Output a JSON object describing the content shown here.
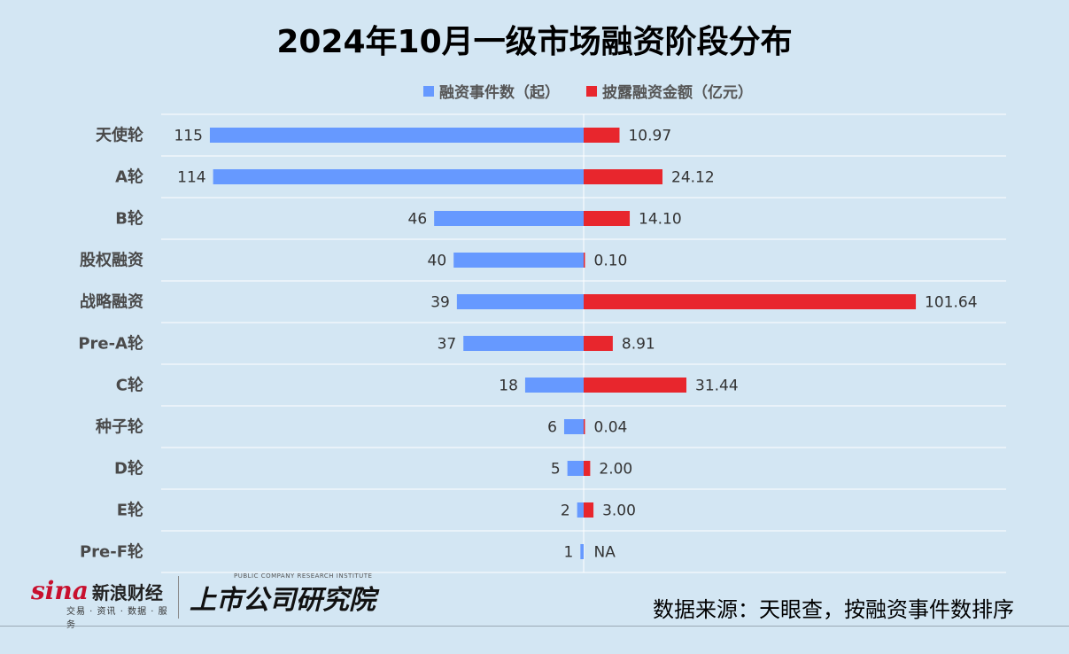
{
  "chart_data": {
    "type": "bar",
    "title": "2024年10月一级市场融资阶段分布",
    "categories": [
      "天使轮",
      "A轮",
      "B轮",
      "股权融资",
      "战略融资",
      "Pre-A轮",
      "C轮",
      "种子轮",
      "D轮",
      "E轮",
      "Pre-F轮"
    ],
    "series": [
      {
        "name": "融资事件数（起）",
        "color": "#6699ff",
        "values": [
          115,
          114,
          46,
          40,
          39,
          37,
          18,
          6,
          5,
          2,
          1
        ],
        "labels": [
          "115",
          "114",
          "46",
          "40",
          "39",
          "37",
          "18",
          "6",
          "5",
          "2",
          "1"
        ]
      },
      {
        "name": "披露融资金额（亿元）",
        "color": "#e8262d",
        "values": [
          10.97,
          24.12,
          14.1,
          0.1,
          101.64,
          8.91,
          31.44,
          0.04,
          2.0,
          3.0,
          null
        ],
        "labels": [
          "10.97",
          "24.12",
          "14.10",
          "0.10",
          "101.64",
          "8.91",
          "31.44",
          "0.04",
          "2.00",
          "3.00",
          "NA"
        ]
      }
    ],
    "grid": true,
    "legend_position": "top"
  },
  "footer": {
    "source": "数据来源：天眼查，按融资事件数排序",
    "sina_logo_word": "sina",
    "sina_logo_cn": "新浪财经",
    "sina_logo_sub": "交易 · 资讯 · 数据 · 服务",
    "institute_sub": "PUBLIC COMPANY RESEARCH INSTITUTE",
    "institute_name": "上市公司研究院"
  }
}
